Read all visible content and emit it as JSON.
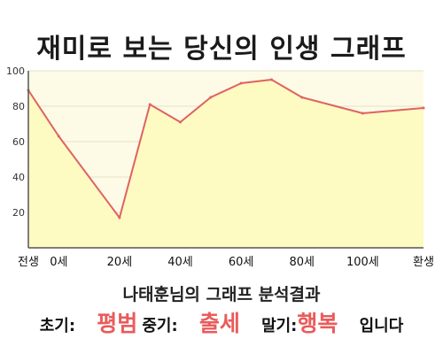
{
  "colors": {
    "line": "#e06262",
    "fill": "#fdfac2",
    "plot_bg": "#fdfbe6",
    "grid": "#e6e1c8",
    "axis": "#555555",
    "highlight": "#ea5b5b"
  },
  "chart_data": {
    "type": "area",
    "title": "재미로 보는 당신의 인생 그래프",
    "x": [
      -10,
      0,
      20,
      30,
      40,
      50,
      60,
      70,
      80,
      100,
      120
    ],
    "y": [
      89,
      63,
      17,
      81,
      71,
      85,
      93,
      95,
      85,
      76,
      79
    ],
    "xlim": [
      -10,
      120
    ],
    "ylim": [
      0,
      100
    ],
    "y_ticks": [
      20,
      40,
      60,
      80,
      100
    ],
    "x_ticks": [
      {
        "x": -10,
        "label": "전생"
      },
      {
        "x": 0,
        "label": "0세"
      },
      {
        "x": 20,
        "label": "20세"
      },
      {
        "x": 40,
        "label": "40세"
      },
      {
        "x": 60,
        "label": "60세"
      },
      {
        "x": 80,
        "label": "80세"
      },
      {
        "x": 100,
        "label": "100세"
      },
      {
        "x": 120,
        "label": "환생"
      }
    ],
    "grid": true,
    "legend": "none"
  },
  "result": {
    "title": "나태훈님의 그래프 분석결과",
    "early_label": "초기:",
    "early_value": "평범",
    "middle_label": "중기:",
    "middle_value": "출세",
    "late_label": "말기:",
    "late_value": "행복",
    "suffix": "입니다"
  }
}
